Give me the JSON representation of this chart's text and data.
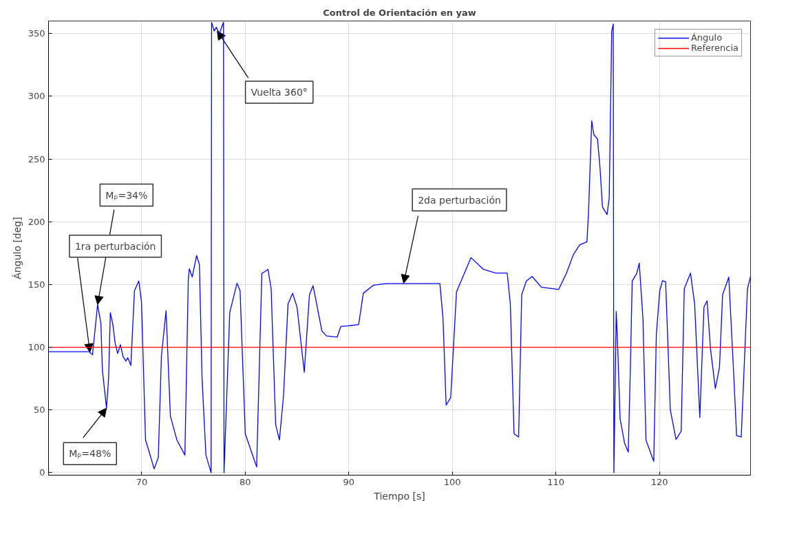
{
  "chart_data": {
    "type": "line",
    "title": "Control de Orientación en yaw",
    "xlabel": "Tiempo [s]",
    "ylabel": "Ángulo [deg]",
    "xlim": [
      61,
      128.8
    ],
    "ylim": [
      -2,
      360
    ],
    "xticks": [
      70,
      80,
      90,
      100,
      110,
      120
    ],
    "yticks": [
      0,
      50,
      100,
      150,
      200,
      250,
      300,
      350
    ],
    "grid": true,
    "legend": "top right",
    "line_style": "solid",
    "marker": "none",
    "series": [
      {
        "name": "Ángulo",
        "color": "#0000ff",
        "x": [
          61,
          64.9,
          65.25,
          65.74,
          66.06,
          66.2,
          66.6,
          66.8,
          66.97,
          67.2,
          67.44,
          67.68,
          67.94,
          68.2,
          68.47,
          68.65,
          68.95,
          69.3,
          69.72,
          69.98,
          70.37,
          70.73,
          71.2,
          71.6,
          71.9,
          72.35,
          72.77,
          73.4,
          74.17,
          74.5,
          74.6,
          74.88,
          75.3,
          75.57,
          75.83,
          76.2,
          76.7,
          76.75,
          77.0,
          77.2,
          77.5,
          77.9,
          77.95,
          78.5,
          79.2,
          79.5,
          80.0,
          80.5,
          81.1,
          81.6,
          82.2,
          82.5,
          82.94,
          83.3,
          83.7,
          84.13,
          84.57,
          85.0,
          85.7,
          86.2,
          86.55,
          87.4,
          87.83,
          88.87,
          89.23,
          89.9,
          90.95,
          91.4,
          92.4,
          93.6,
          98.8,
          99.1,
          99.4,
          99.84,
          100.4,
          101.8,
          103,
          104.2,
          105.3,
          105.6,
          105.96,
          106.4,
          106.7,
          107.14,
          107.7,
          108.6,
          110.26,
          111,
          111.7,
          112.3,
          113,
          113.15,
          113.46,
          113.66,
          114.02,
          114.26,
          114.5,
          114.94,
          115.15,
          115.39,
          115.54,
          115.6,
          115.83,
          115.98,
          116.2,
          116.63,
          116.99,
          117.2,
          117.37,
          117.8,
          118.05,
          118.41,
          118.7,
          119.45,
          119.7,
          120.03,
          120.3,
          120.6,
          121.05,
          121.6,
          122.1,
          122.4,
          123.0,
          123.4,
          123.9,
          124.3,
          124.6,
          124.94,
          125.4,
          125.8,
          126.1,
          126.7,
          127.2,
          127.45,
          127.9,
          128.5,
          128.8
        ],
        "values": [
          96.4,
          96.4,
          94,
          134,
          118.7,
          82,
          51.4,
          75,
          127.5,
          118.7,
          103,
          95,
          102,
          92.5,
          89,
          91.6,
          85.5,
          145,
          152.8,
          136,
          26,
          16.4,
          3,
          12,
          92.5,
          129,
          45,
          26,
          14,
          154,
          162.5,
          156,
          173,
          166,
          75,
          14,
          0,
          359,
          352,
          355,
          350,
          359,
          0,
          127.5,
          151,
          145,
          31,
          19,
          4.5,
          158.7,
          162,
          146.6,
          38,
          26,
          62,
          134.5,
          143,
          132,
          80,
          141.8,
          149,
          113,
          109,
          108,
          116.5,
          117,
          118,
          143,
          149.5,
          150.7,
          150.7,
          122.5,
          53.8,
          59.8,
          144,
          171.4,
          162,
          159,
          159,
          134.5,
          31,
          28.4,
          141.8,
          152.7,
          156.4,
          147.8,
          146,
          158.6,
          174,
          181.5,
          184,
          207,
          280.4,
          269.5,
          266,
          243,
          211.7,
          205.7,
          219,
          351.5,
          357.6,
          0,
          128.5,
          98,
          43,
          23.6,
          16.4,
          86,
          152.7,
          158.6,
          167,
          122.5,
          26,
          9,
          110,
          145,
          153,
          152,
          50,
          26.5,
          33,
          146.6,
          159,
          134.5,
          44,
          132,
          137,
          98,
          67,
          84,
          141.8,
          155.8,
          74,
          29.6,
          28.4,
          146.6,
          156.4
        ]
      },
      {
        "name": "Referencia",
        "color": "#ff0000",
        "x": [
          61,
          128.8
        ],
        "values": [
          100,
          100
        ]
      }
    ],
    "annotations": [
      {
        "text": "1ra perturbación",
        "x": 65.0,
        "y": 96
      },
      {
        "text": "Mₚ=34%",
        "x": 65.74,
        "y": 134
      },
      {
        "text": "Mₚ=48%",
        "x": 66.6,
        "y": 51.4
      },
      {
        "text": "Vuelta 360°",
        "x": 77.3,
        "y": 352
      },
      {
        "text": "2da perturbación",
        "x": 95.3,
        "y": 151
      }
    ]
  }
}
